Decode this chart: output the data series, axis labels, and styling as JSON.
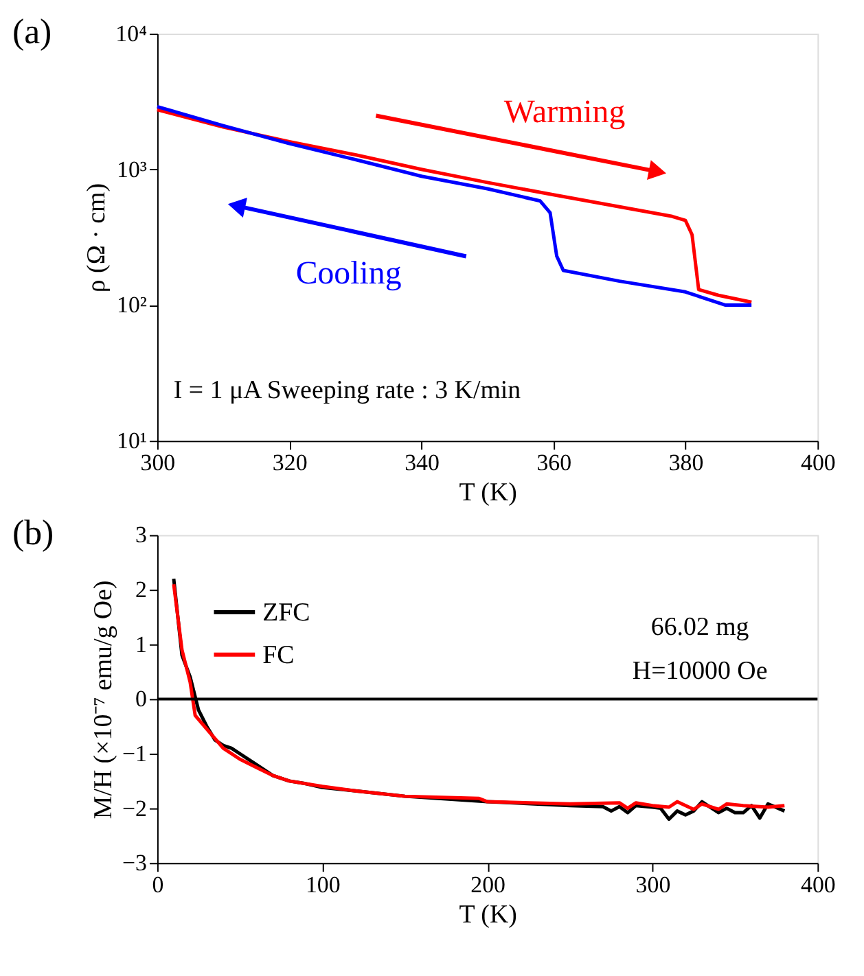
{
  "chart_data": [
    {
      "type": "line",
      "xlabel": "T (K)",
      "ylabel": "ρ (Ω · cm)",
      "log": "y",
      "xlim": [
        300,
        400
      ],
      "xticks": [
        300,
        320,
        340,
        360,
        380,
        400
      ],
      "ylim": [
        10,
        10000
      ],
      "yticks": [
        {
          "value": 10,
          "label": "10¹"
        },
        {
          "value": 100,
          "label": "10²"
        },
        {
          "value": 1000,
          "label": "10³"
        },
        {
          "value": 10000,
          "label": "10⁴"
        }
      ],
      "grid": false,
      "legend": false,
      "marker": "none",
      "line_style": "solid",
      "series": [
        {
          "color": "#ff0000",
          "x": [
            300,
            310,
            320,
            330,
            340,
            350,
            360,
            370,
            378,
            380,
            381,
            382,
            385,
            390
          ],
          "values": [
            2750,
            2050,
            1600,
            1280,
            1000,
            800,
            650,
            530,
            450,
            420,
            330,
            130,
            118,
            105
          ]
        },
        {
          "color": "#0000ff",
          "x": [
            300,
            310,
            320,
            330,
            340,
            350,
            358,
            359.5,
            360.5,
            361.5,
            370,
            380,
            386,
            390
          ],
          "values": [
            2900,
            2100,
            1550,
            1180,
            890,
            720,
            585,
            480,
            230,
            180,
            150,
            125,
            100,
            100
          ]
        }
      ],
      "annotations": [
        "(a)",
        "Warming",
        "Cooling",
        "I = 1 μA    Sweeping rate : 3 K/min"
      ]
    },
    {
      "type": "line",
      "xlabel": "T (K)",
      "ylabel": "M/H (×10⁻⁷ emu/g Oe)",
      "xlim": [
        0,
        400
      ],
      "xticks": [
        0,
        100,
        200,
        300,
        400
      ],
      "ylim": [
        -3,
        3
      ],
      "yticks": [
        -3,
        -2,
        -1,
        0,
        1,
        2,
        3
      ],
      "grid": false,
      "legend": "top left",
      "marker": "none",
      "line_style": "solid",
      "ref_lines": [
        {
          "axis": "y",
          "value": 0,
          "color": "#000000"
        }
      ],
      "series": [
        {
          "name": "ZFC",
          "color": "#000000",
          "x": [
            10,
            15,
            20,
            25,
            30,
            35,
            40,
            45,
            50,
            60,
            70,
            80,
            90,
            100,
            120,
            150,
            200,
            250,
            270,
            275,
            280,
            285,
            290,
            300,
            305,
            310,
            315,
            320,
            325,
            330,
            340,
            345,
            350,
            355,
            360,
            365,
            370,
            380
          ],
          "values": [
            2.2,
            0.8,
            0.4,
            -0.2,
            -0.5,
            -0.75,
            -0.85,
            -0.9,
            -1.0,
            -1.2,
            -1.4,
            -1.5,
            -1.55,
            -1.62,
            -1.68,
            -1.78,
            -1.88,
            -1.95,
            -1.97,
            -2.05,
            -1.97,
            -2.08,
            -1.95,
            -1.98,
            -2.0,
            -2.2,
            -2.05,
            -2.12,
            -2.05,
            -1.88,
            -2.08,
            -2.0,
            -2.08,
            -2.08,
            -1.95,
            -2.18,
            -1.92,
            -2.05
          ]
        },
        {
          "name": "FC",
          "color": "#ff0000",
          "x": [
            10,
            15,
            20,
            23,
            30,
            40,
            50,
            60,
            70,
            80,
            100,
            120,
            150,
            195,
            200,
            250,
            280,
            285,
            290,
            300,
            310,
            315,
            325,
            330,
            340,
            345,
            355,
            370,
            380
          ],
          "values": [
            2.1,
            0.9,
            0.3,
            -0.3,
            -0.55,
            -0.9,
            -1.1,
            -1.25,
            -1.4,
            -1.5,
            -1.6,
            -1.68,
            -1.78,
            -1.82,
            -1.88,
            -1.92,
            -1.9,
            -2.0,
            -1.9,
            -1.95,
            -1.98,
            -1.88,
            -2.02,
            -1.92,
            -2.02,
            -1.92,
            -1.95,
            -1.98,
            -1.95
          ]
        }
      ],
      "annotations": [
        "(b)",
        "66.02 mg",
        "H=10000 Oe"
      ]
    }
  ]
}
